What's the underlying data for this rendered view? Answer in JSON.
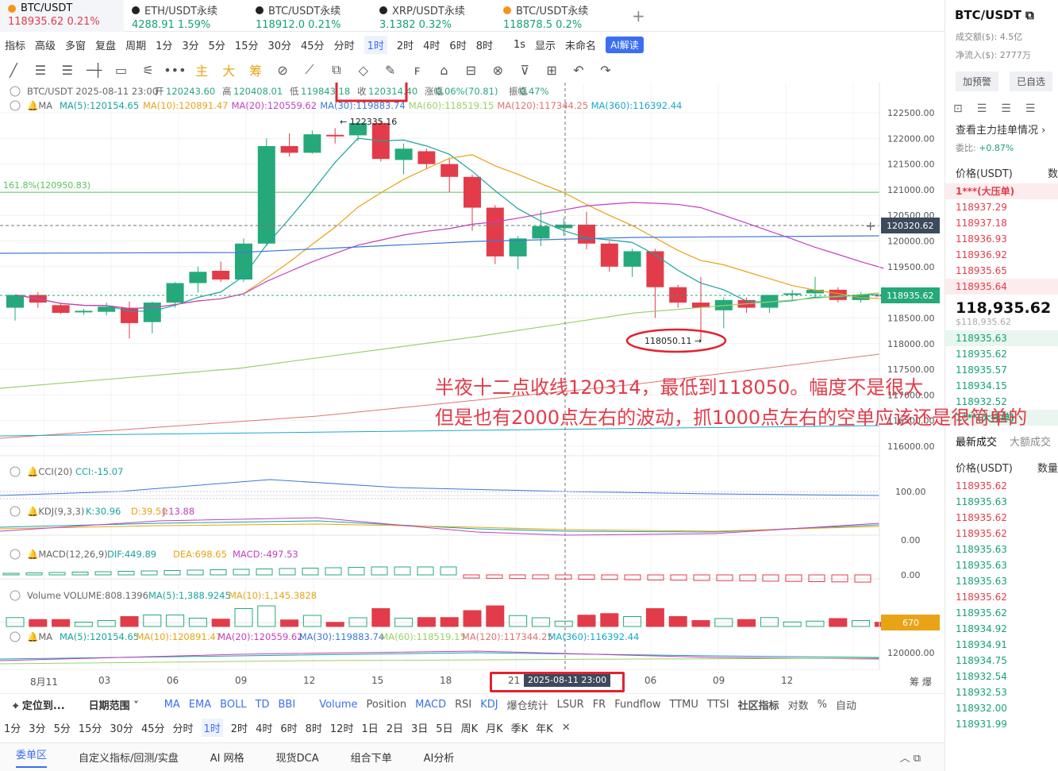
{
  "tabs": [
    {
      "name": "BTC/USDT",
      "price": "118935.62",
      "change": "0.21%",
      "active": true,
      "coin": "#f7931a"
    },
    {
      "name": "ETH/USDT永续",
      "price": "4288.91",
      "change": "1.59%",
      "coin": "#222"
    },
    {
      "name": "BTC/USDT永续",
      "price": "118912.0",
      "change": "0.21%",
      "coin": "#222"
    },
    {
      "name": "XRP/USDT永续",
      "price": "3.1382",
      "change": "0.32%",
      "coin": "#222"
    },
    {
      "name": "BTC/USDT永续",
      "price": "118878.5",
      "change": "0.2%",
      "coin": "#f7931a"
    }
  ],
  "toolbar1": [
    "指标",
    "高级",
    "多窗",
    "复盘",
    "周期",
    "1分",
    "3分",
    "5分",
    "15分",
    "30分",
    "45分",
    "分时",
    "1时",
    "2时",
    "4时",
    "6时",
    "8时",
    "1s",
    "显示",
    "未命名",
    "AI解读"
  ],
  "toolbar1_selected": "1时",
  "toolbar2": [
    "╱",
    "☰",
    "☰",
    "─┼",
    "▭",
    "⚟",
    "•••",
    "主",
    "大",
    "筹",
    "⊘",
    "⟋",
    "⧉",
    "◇",
    "✎",
    "ꜰ",
    "⌂",
    "⊟",
    "⊗",
    "⊽",
    "⊞",
    "↶",
    "↷"
  ],
  "legend": {
    "main": "BTC/USDT  2025-08-11 23:00",
    "open_label": "开",
    "open": "120243.60",
    "high_label": "高",
    "high": "120408.01",
    "low_label": "低",
    "low": "119843.18",
    "close_label": "收",
    "close": "120314.40",
    "amp_label": "涨幅",
    "amp": "0.06%(70.81)",
    "vib_label": "振幅",
    "vib": "0.47%"
  },
  "ma_legend": [
    {
      "label": "MA(5):120154.65",
      "color": "#1aa3a0"
    },
    {
      "label": "MA(10):120891.47",
      "color": "#e8a317"
    },
    {
      "label": "MA(20):120559.62",
      "color": "#c23fc2"
    },
    {
      "label": "MA(30):119883.74",
      "color": "#3c78d8"
    },
    {
      "label": "MA(60):118519.15",
      "color": "#9bd16a"
    },
    {
      "label": "MA(120):117344.25",
      "color": "#e27272"
    },
    {
      "label": "MA(360):116392.44",
      "color": "#18a8c9"
    }
  ],
  "fib_label": "161.8%(120950.83)",
  "price_axis": [
    "122500.00",
    "122000.00",
    "121500.00",
    "121000.00",
    "120500.00",
    "120000.00",
    "119500.00",
    "119000.00",
    "118500.00",
    "118000.00",
    "117500.00",
    "117000.00",
    "116500.00",
    "116000.00"
  ],
  "crosshair_price": "120320.62",
  "last_price_tag": "118935.62",
  "high_marker": "122335.16",
  "low_marker": "118050.11",
  "cci": {
    "title": "CCI(20)",
    "value": "CCI:-15.07",
    "axis": "100.00"
  },
  "kdj": {
    "title": "KDJ(9,3,3)",
    "k": "K:30.96",
    "d": "D:39.50",
    "j": "J:13.88",
    "axis": "0.00"
  },
  "macd": {
    "title": "MACD(12,26,9)",
    "dif": "DIF:449.89",
    "dea": "DEA:698.65",
    "macd": "MACD:-497.53",
    "axis": "0.00"
  },
  "volume": {
    "title": "Volume",
    "vol": "VOLUME:808.1396",
    "ma5": "MA(5):1,388.9245",
    "ma10": "MA(10):1,145.3828",
    "tag": "670"
  },
  "ma2_axis": "120000.00",
  "x_labels": [
    "8月11",
    "03",
    "06",
    "09",
    "12",
    "15",
    "18",
    "21",
    "03",
    "06",
    "09",
    "12"
  ],
  "x_highlight": "2025-08-11 23:00",
  "annotation": [
    "半夜十二点收线120314，最低到118050。幅度不是很大",
    "但是也有2000点左右的波动，抓1000点左右的空单应该还是很简单的"
  ],
  "indicator_bar": {
    "locate": "定位到...",
    "range": "日期范围",
    "items": [
      "MA",
      "EMA",
      "BOLL",
      "TD",
      "BBI",
      "Volume",
      "Position",
      "MACD",
      "RSI",
      "KDJ",
      "爆仓统计",
      "LSUR",
      "FR",
      "Fundflow",
      "TTMU",
      "TTSI",
      "社区指标",
      "对数",
      "%",
      "自动"
    ]
  },
  "period_bar": [
    "1分",
    "3分",
    "5分",
    "15分",
    "30分",
    "45分",
    "分时",
    "1时",
    "2时",
    "4时",
    "6时",
    "8时",
    "12时",
    "1日",
    "2日",
    "3日",
    "5日",
    "周K",
    "月K",
    "季K",
    "年K"
  ],
  "bottom_tabs": [
    "委单区",
    "自定义指标/回测/实盘",
    "AI 网格",
    "现货DCA",
    "组合下单",
    "AI分析"
  ],
  "side": {
    "pair": "BTC/USDT",
    "vol_label": "成交额($):",
    "vol": "4.5亿",
    "inflow_label": "净流入($):",
    "inflow": "2777万",
    "btn_alert": "加预警",
    "btn_fav": "已自选",
    "main_orders": "查看主力挂单情况",
    "ratio_label": "委比:",
    "ratio": "+0.87%",
    "col_price": "价格(USDT)",
    "col_qty": "数",
    "ask_big": "1***(大压单)",
    "asks": [
      "118937.29",
      "118937.18",
      "118936.93",
      "118936.92",
      "118935.65",
      "118935.64"
    ],
    "last": "118,935.62",
    "last_usd": "$118,935.62",
    "bids": [
      "118935.63",
      "118935.62",
      "118935.57",
      "118934.15",
      "118932.52"
    ],
    "bid_big": "1***(大托单)",
    "trades_tab": "最新成交",
    "big_tab": "大额成交",
    "trades": [
      {
        "p": "118935.62",
        "c": "red"
      },
      {
        "p": "118935.63",
        "c": "green"
      },
      {
        "p": "118935.62",
        "c": "red"
      },
      {
        "p": "118935.62",
        "c": "red"
      },
      {
        "p": "118935.63",
        "c": "green"
      },
      {
        "p": "118935.63",
        "c": "green"
      },
      {
        "p": "118935.63",
        "c": "green"
      },
      {
        "p": "118935.62",
        "c": "red"
      },
      {
        "p": "118935.62",
        "c": "green"
      },
      {
        "p": "118934.92",
        "c": "green"
      },
      {
        "p": "118934.91",
        "c": "green"
      },
      {
        "p": "118934.75",
        "c": "green"
      },
      {
        "p": "118932.54",
        "c": "green"
      },
      {
        "p": "118932.53",
        "c": "green"
      },
      {
        "p": "118932.00",
        "c": "green"
      },
      {
        "p": "118931.99",
        "c": "green"
      }
    ]
  },
  "chart_data": {
    "type": "candlestick",
    "interval": "1h",
    "candles": [
      {
        "o": 118700,
        "h": 118950,
        "l": 118450,
        "c": 118950
      },
      {
        "o": 118950,
        "h": 119000,
        "l": 118700,
        "c": 118800
      },
      {
        "o": 118750,
        "h": 118800,
        "l": 118580,
        "c": 118600
      },
      {
        "o": 118620,
        "h": 118680,
        "l": 118560,
        "c": 118640
      },
      {
        "o": 118620,
        "h": 118800,
        "l": 118550,
        "c": 118720
      },
      {
        "o": 118700,
        "h": 118820,
        "l": 118100,
        "c": 118400
      },
      {
        "o": 118420,
        "h": 118820,
        "l": 118200,
        "c": 118800
      },
      {
        "o": 118800,
        "h": 119200,
        "l": 118700,
        "c": 119180
      },
      {
        "o": 119180,
        "h": 119500,
        "l": 119000,
        "c": 119400
      },
      {
        "o": 119420,
        "h": 119600,
        "l": 119200,
        "c": 119250
      },
      {
        "o": 119250,
        "h": 120050,
        "l": 119200,
        "c": 119950
      },
      {
        "o": 119950,
        "h": 122000,
        "l": 119900,
        "c": 121850
      },
      {
        "o": 121850,
        "h": 122100,
        "l": 121650,
        "c": 121720
      },
      {
        "o": 121720,
        "h": 122150,
        "l": 121700,
        "c": 122080
      },
      {
        "o": 122070,
        "h": 122200,
        "l": 121900,
        "c": 122060
      },
      {
        "o": 122060,
        "h": 122330,
        "l": 121950,
        "c": 122300
      },
      {
        "o": 122300,
        "h": 122335,
        "l": 121550,
        "c": 121600
      },
      {
        "o": 121580,
        "h": 121900,
        "l": 121300,
        "c": 121800
      },
      {
        "o": 121750,
        "h": 121800,
        "l": 121400,
        "c": 121500
      },
      {
        "o": 121500,
        "h": 121600,
        "l": 120950,
        "c": 121250
      },
      {
        "o": 121250,
        "h": 121300,
        "l": 120200,
        "c": 120650
      },
      {
        "o": 120650,
        "h": 120700,
        "l": 119550,
        "c": 119700
      },
      {
        "o": 119700,
        "h": 120100,
        "l": 119450,
        "c": 120050
      },
      {
        "o": 120050,
        "h": 120600,
        "l": 119900,
        "c": 120290
      },
      {
        "o": 120250,
        "h": 120450,
        "l": 120100,
        "c": 120320
      },
      {
        "o": 120320,
        "h": 120570,
        "l": 119840,
        "c": 119950
      },
      {
        "o": 119950,
        "h": 120000,
        "l": 119400,
        "c": 119500
      },
      {
        "o": 119500,
        "h": 119850,
        "l": 119300,
        "c": 119800
      },
      {
        "o": 119800,
        "h": 119850,
        "l": 118500,
        "c": 119100
      },
      {
        "o": 119100,
        "h": 119150,
        "l": 118700,
        "c": 118800
      },
      {
        "o": 118800,
        "h": 119300,
        "l": 118050,
        "c": 118700
      },
      {
        "o": 118650,
        "h": 118900,
        "l": 118300,
        "c": 118850
      },
      {
        "o": 118850,
        "h": 118900,
        "l": 118600,
        "c": 118700
      },
      {
        "o": 118700,
        "h": 118950,
        "l": 118600,
        "c": 118950
      },
      {
        "o": 118950,
        "h": 119050,
        "l": 118850,
        "c": 118980
      },
      {
        "o": 118980,
        "h": 119300,
        "l": 118900,
        "c": 119050
      },
      {
        "o": 119050,
        "h": 119100,
        "l": 118800,
        "c": 118850
      },
      {
        "o": 118850,
        "h": 119000,
        "l": 118800,
        "c": 118950
      },
      {
        "o": 118950,
        "h": 119100,
        "l": 118850,
        "c": 118935
      }
    ],
    "ylim": [
      115800,
      122900
    ]
  }
}
